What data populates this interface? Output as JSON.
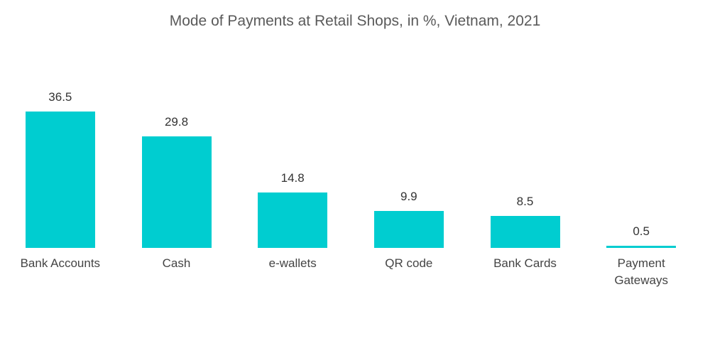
{
  "chart_data": {
    "type": "bar",
    "title": "Mode of Payments at Retail Shops, in %, Vietnam, 2021",
    "categories": [
      "Bank Accounts",
      "Cash",
      "e-wallets",
      "QR code",
      "Bank Cards",
      "Payment Gateways"
    ],
    "values": [
      36.5,
      29.8,
      14.8,
      9.9,
      8.5,
      0.5
    ],
    "color": "#00cdd0"
  }
}
